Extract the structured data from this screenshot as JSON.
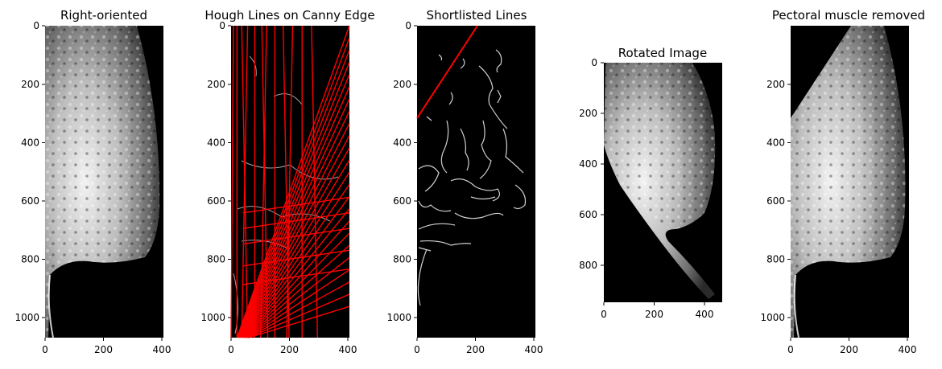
{
  "figure": {
    "panels": [
      {
        "title": "Right-oriented",
        "x_ticks": [
          "0",
          "200",
          "400"
        ],
        "y_ticks": [
          "0",
          "200",
          "400",
          "600",
          "800",
          "1000"
        ]
      },
      {
        "title": "Hough Lines on Canny Edge",
        "x_ticks": [
          "0",
          "200",
          "400"
        ],
        "y_ticks": [
          "0",
          "200",
          "400",
          "600",
          "800",
          "1000"
        ]
      },
      {
        "title": "Shortlisted Lines",
        "x_ticks": [
          "0",
          "200",
          "400"
        ],
        "y_ticks": [
          "0",
          "200",
          "400",
          "600",
          "800",
          "1000"
        ]
      },
      {
        "title": "Rotated Image",
        "x_ticks": [
          "0",
          "200",
          "400"
        ],
        "y_ticks": [
          "0",
          "200",
          "400",
          "600",
          "800"
        ]
      },
      {
        "title": "Pectoral muscle removed",
        "x_ticks": [
          "0",
          "200",
          "400"
        ],
        "y_ticks": [
          "200",
          "400",
          "600",
          "800",
          "1000"
        ]
      }
    ],
    "colors": {
      "image_background": "#000000",
      "detected_line": "#ff0000",
      "edge": "#cccccc",
      "tissue": "#d0d0d0"
    }
  }
}
